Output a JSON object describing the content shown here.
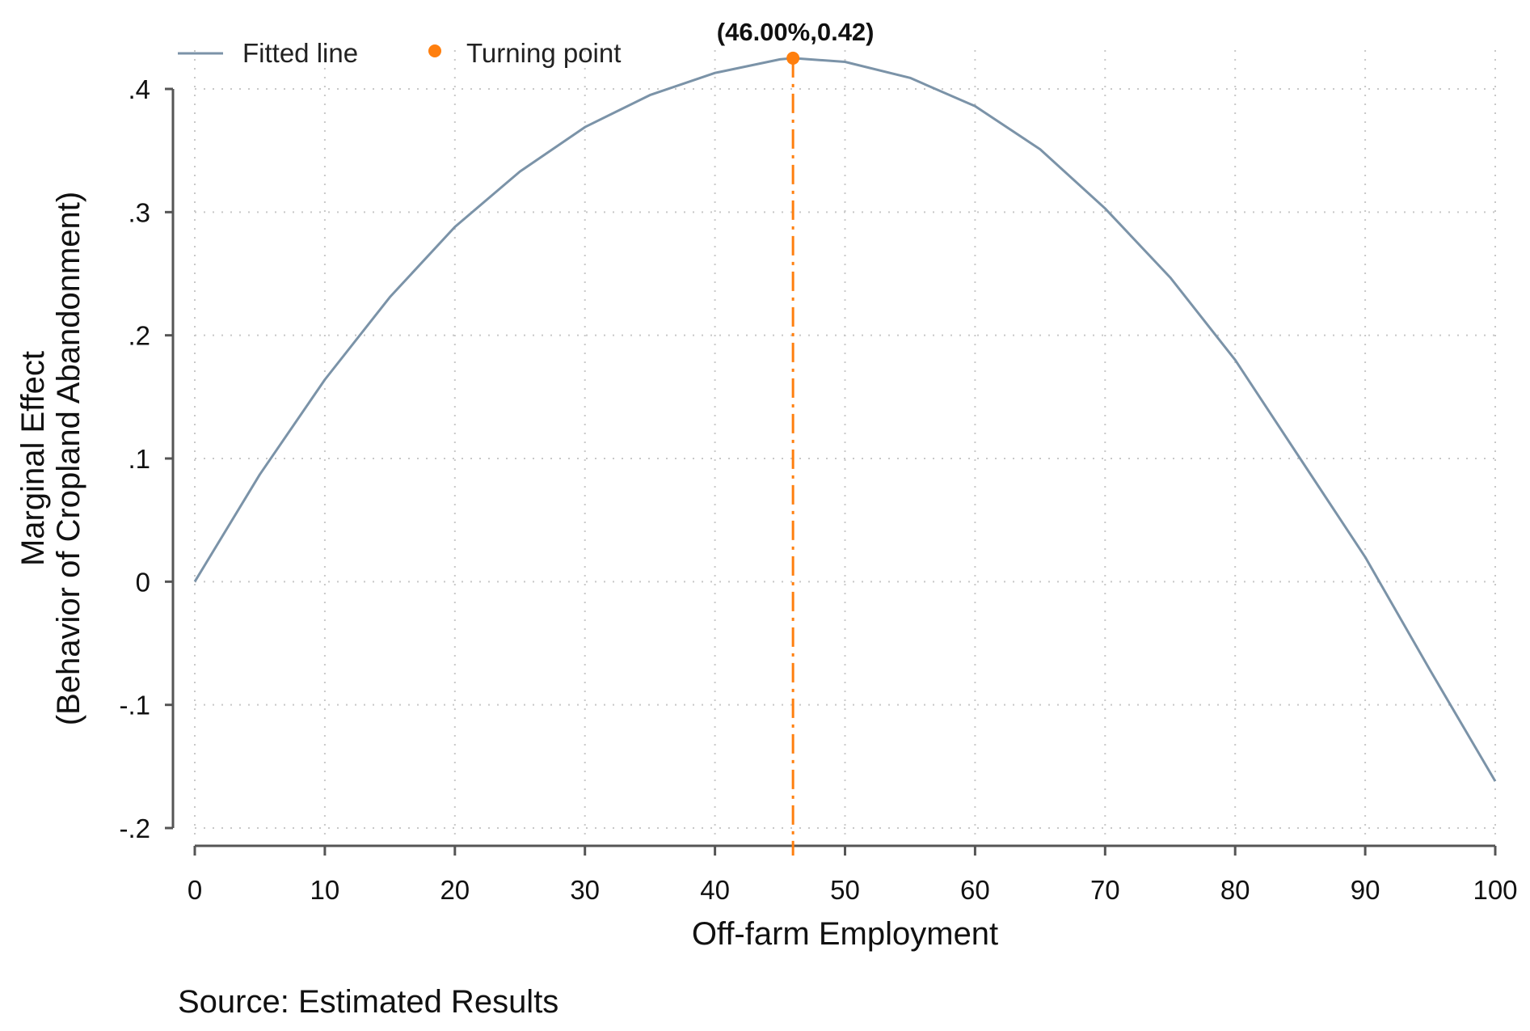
{
  "chart_data": {
    "type": "line",
    "title": "",
    "xlabel": "Off-farm Employment",
    "ylabel_lines": [
      "Marginal Effect",
      "(Behavior of Cropland Abandonment)"
    ],
    "xlim": [
      0,
      100
    ],
    "ylim": [
      -0.2,
      0.4
    ],
    "x_ticks": [
      0,
      10,
      20,
      30,
      40,
      50,
      60,
      70,
      80,
      90,
      100
    ],
    "x_tick_labels": [
      "0",
      "10",
      "20",
      "30",
      "40",
      "50",
      "60",
      "70",
      "80",
      "90",
      "100"
    ],
    "y_ticks": [
      -0.2,
      -0.1,
      0,
      0.1,
      0.2,
      0.3,
      0.4
    ],
    "y_tick_labels": [
      "-.2",
      "-.1",
      "0",
      ".1",
      ".2",
      ".3",
      ".4"
    ],
    "grid": true,
    "legend_position": "top-left",
    "series": [
      {
        "name": "Fitted line",
        "color": "#7b93a8",
        "x": [
          0,
          5,
          10,
          15,
          20,
          25,
          30,
          35,
          40,
          45,
          46,
          50,
          55,
          60,
          65,
          70,
          75,
          80,
          85,
          90,
          95,
          100
        ],
        "y": [
          0.0,
          0.087,
          0.164,
          0.231,
          0.288,
          0.333,
          0.369,
          0.395,
          0.413,
          0.424,
          0.425,
          0.422,
          0.409,
          0.386,
          0.351,
          0.303,
          0.247,
          0.18,
          0.1,
          0.02,
          -0.072,
          -0.162
        ]
      },
      {
        "name": "Turning point",
        "color": "#ff7f0e",
        "x": [
          46
        ],
        "y": [
          0.425
        ]
      }
    ],
    "annotations": [
      {
        "text": "(46.00%,0.42)",
        "x": 46,
        "y": 0.425
      }
    ],
    "reference_line": {
      "x": 46,
      "style": "dash-dot",
      "color": "#ff7f0e"
    }
  },
  "source_note": "Source: Estimated Results"
}
